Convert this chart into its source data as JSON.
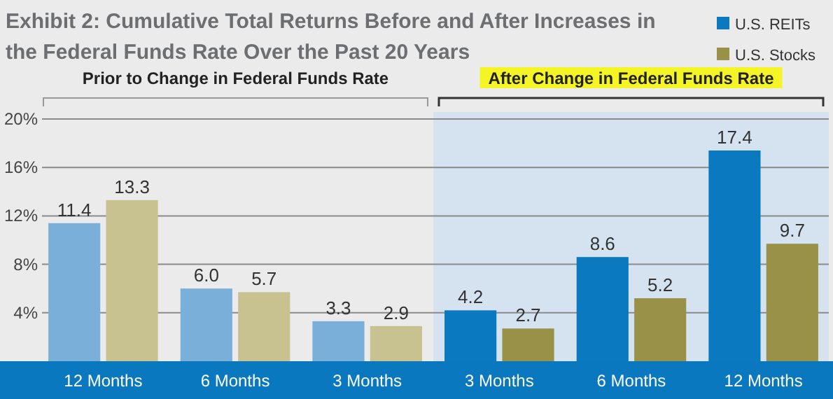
{
  "chart_data": {
    "type": "bar",
    "title": "Exhibit 2: Cumulative Total Returns Before and After Increases in the Federal Funds Rate Over the Past 20 Years",
    "categories": [
      "12 Months",
      "6 Months",
      "3 Months",
      "3 Months",
      "6 Months",
      "12 Months"
    ],
    "series": [
      {
        "name": "U.S. REITs",
        "color": "#0b79bf",
        "colors": [
          "#7aafd9",
          "#7aafd9",
          "#7aafd9",
          "#0b79bf",
          "#0b79bf",
          "#0b79bf"
        ],
        "values": [
          11.4,
          6.0,
          3.3,
          4.2,
          8.6,
          17.4
        ],
        "value_labels": [
          "11.4",
          "6.0",
          "3.3",
          "4.2",
          "8.6",
          "17.4"
        ]
      },
      {
        "name": "U.S. Stocks",
        "color": "#9a9148",
        "colors": [
          "#c8c190",
          "#c8c190",
          "#c8c190",
          "#9a9148",
          "#9a9148",
          "#9a9148"
        ],
        "values": [
          13.3,
          5.7,
          2.9,
          2.7,
          5.2,
          9.7
        ],
        "value_labels": [
          "13.3",
          "5.7",
          "2.9",
          "2.7",
          "5.2",
          "9.7"
        ]
      }
    ],
    "ylim": [
      0,
      20
    ],
    "yticks": [
      {
        "value": 4,
        "label": "4%"
      },
      {
        "value": 8,
        "label": "8%"
      },
      {
        "value": 12,
        "label": "12%"
      },
      {
        "value": 16,
        "label": "16%"
      },
      {
        "value": 20,
        "label": "20%"
      }
    ],
    "grid": "y",
    "legend": "top right",
    "annotations": [
      "Prior to Change in Federal Funds Rate",
      "After Change in Federal Funds Rate"
    ]
  }
}
